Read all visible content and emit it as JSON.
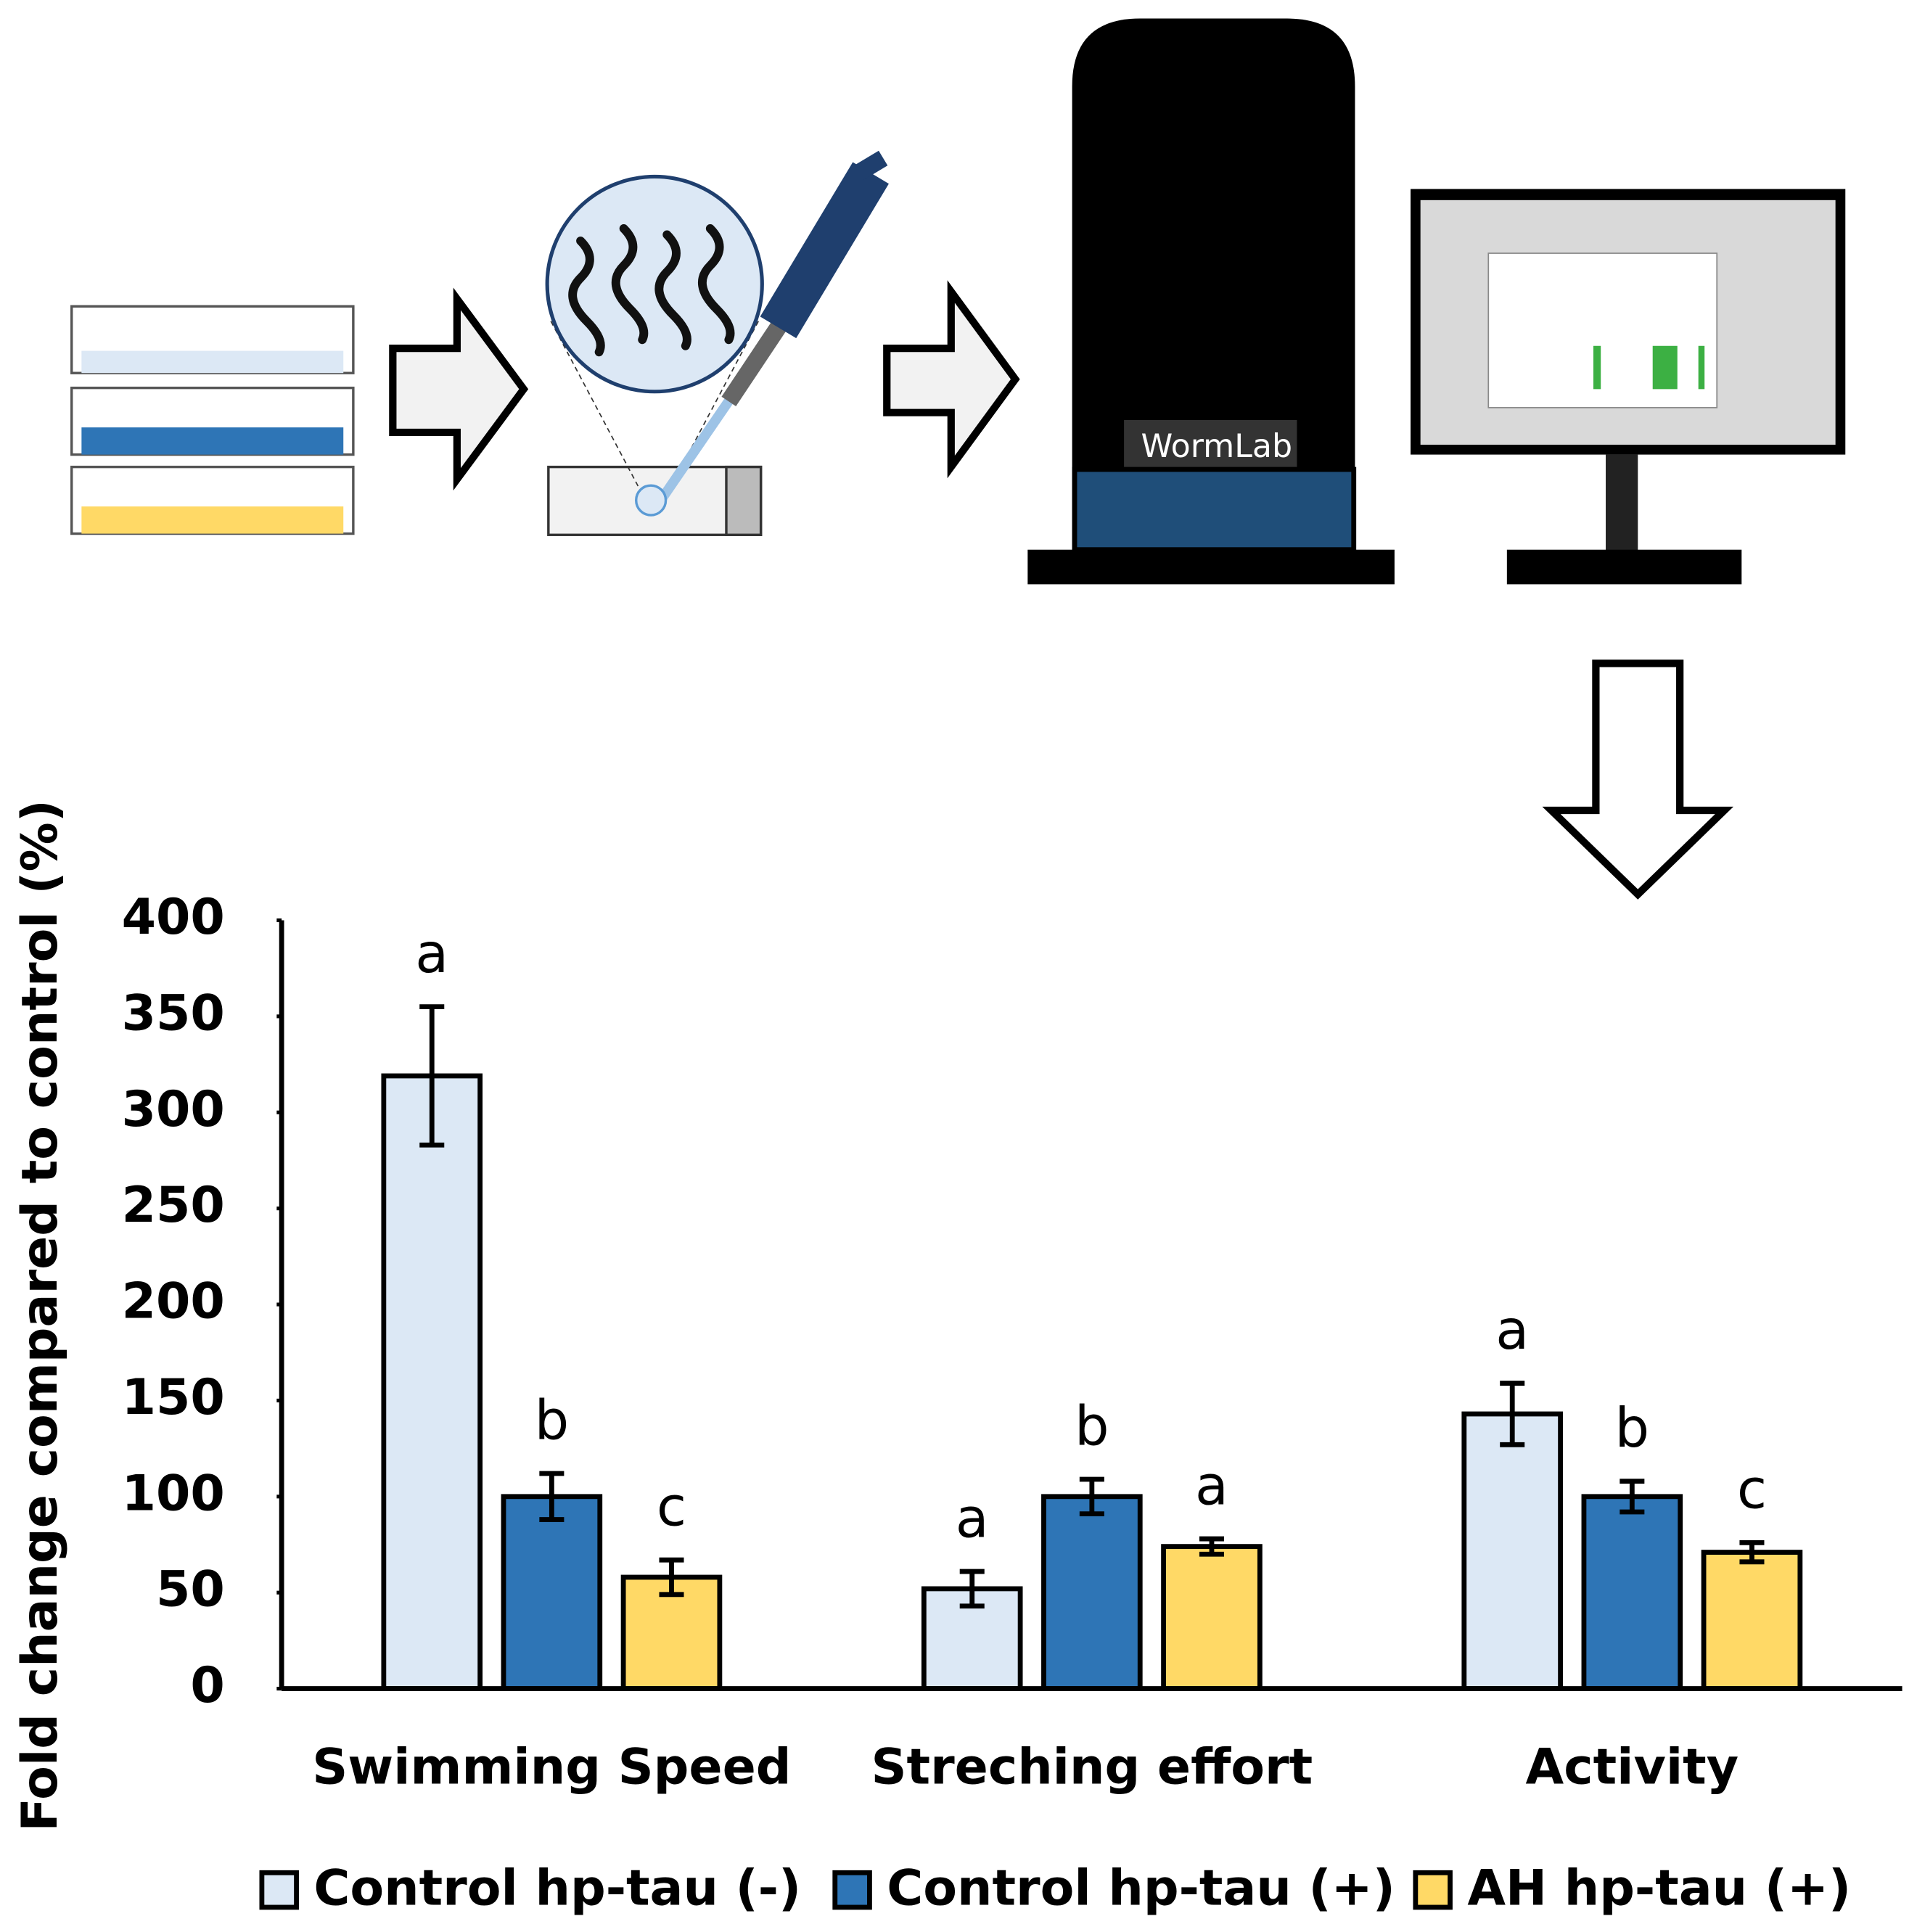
{
  "diagram": {
    "device_label": "WormLab"
  },
  "chart_data": {
    "type": "bar",
    "ylabel": "Fold change compared to control (%)",
    "categories": [
      "Swimming Speed",
      "Streching effort",
      "Activity"
    ],
    "series": [
      {
        "name": "Control hp-tau (-)",
        "color": "#dce8f5",
        "values": [
          319,
          52,
          143
        ],
        "errors": [
          36,
          9,
          16
        ],
        "letters": [
          "a",
          "a",
          "a"
        ]
      },
      {
        "name": "Control hp-tau (+)",
        "color": "#2e75b6",
        "values": [
          100,
          100,
          100
        ],
        "errors": [
          12,
          9,
          8
        ],
        "letters": [
          "b",
          "b",
          "b"
        ]
      },
      {
        "name": "AH hp-tau (+)",
        "color": "#ffd966",
        "values": [
          58,
          74,
          71
        ],
        "errors": [
          9,
          4,
          5
        ],
        "letters": [
          "c",
          "a",
          "c"
        ]
      }
    ],
    "ylim": [
      0,
      400
    ],
    "yticks": [
      0,
      50,
      100,
      150,
      200,
      250,
      300,
      350,
      400
    ],
    "legend": "bottom"
  }
}
